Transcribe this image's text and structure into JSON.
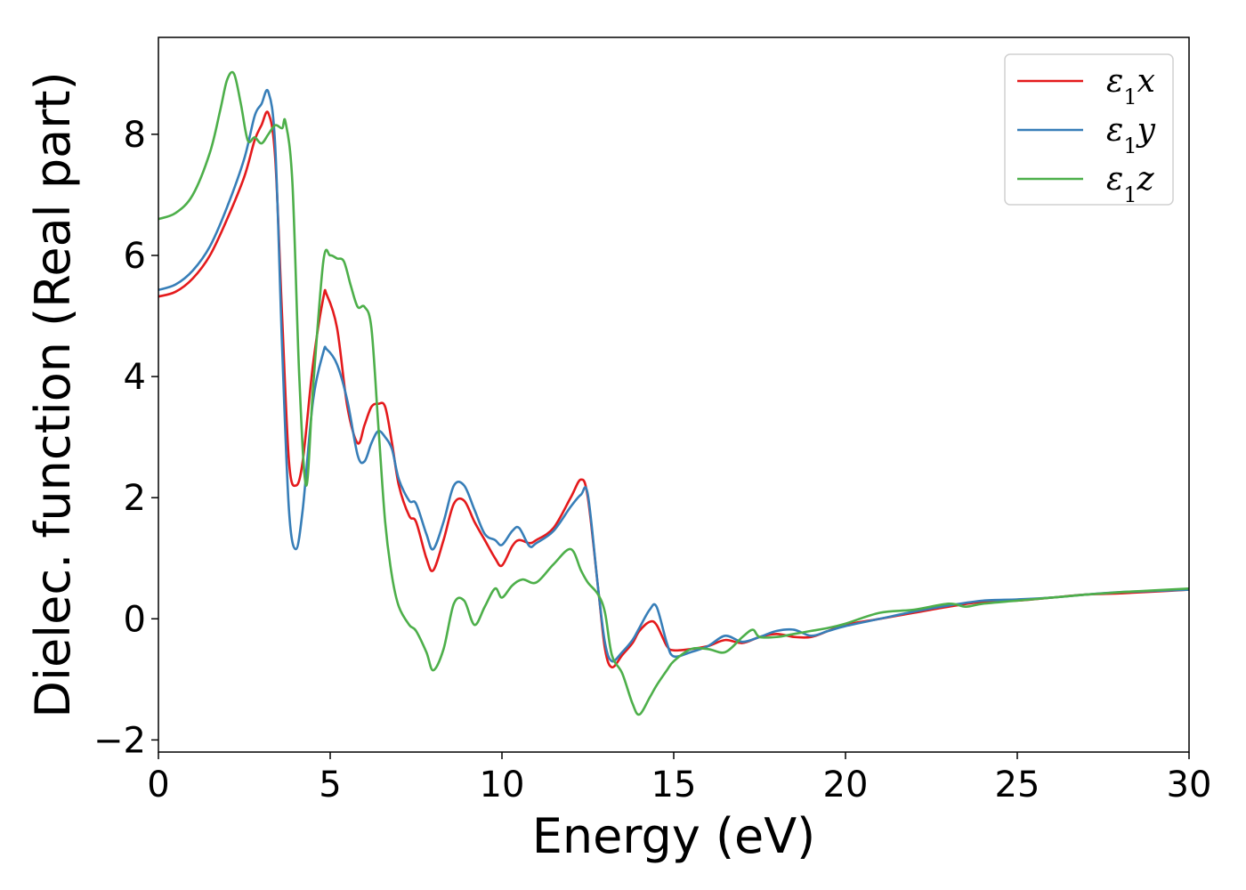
{
  "chart_data": {
    "type": "line",
    "title": "",
    "xlabel": "Energy (eV)",
    "ylabel": "Dielec. function (Real part)",
    "xlim": [
      0,
      30
    ],
    "ylim": [
      -2.2,
      9.6
    ],
    "xticks": [
      0,
      5,
      10,
      15,
      20,
      25,
      30
    ],
    "xtick_labels": [
      "0",
      "5",
      "10",
      "15",
      "20",
      "25",
      "30"
    ],
    "yticks": [
      -2,
      0,
      2,
      4,
      6,
      8
    ],
    "ytick_labels": [
      "−2",
      "0",
      "2",
      "4",
      "6",
      "8"
    ],
    "grid": false,
    "legend_position": "top-right",
    "series": [
      {
        "name": "ε1x",
        "legend": {
          "base": "ε",
          "sub": "1",
          "var": "x"
        },
        "color": "#e41a1c",
        "x": [
          0,
          0.5,
          1.0,
          1.5,
          2.0,
          2.5,
          2.8,
          3.0,
          3.2,
          3.4,
          3.6,
          3.8,
          4.0,
          4.2,
          4.5,
          4.8,
          4.9,
          5.2,
          5.5,
          5.8,
          6.0,
          6.2,
          6.4,
          6.6,
          6.8,
          7.0,
          7.3,
          7.5,
          7.8,
          8.0,
          8.3,
          8.6,
          8.9,
          9.2,
          9.5,
          9.8,
          10.0,
          10.3,
          10.5,
          10.8,
          11.0,
          11.5,
          12.0,
          12.3,
          12.5,
          12.8,
          13.0,
          13.2,
          13.5,
          13.8,
          14.0,
          14.3,
          14.5,
          14.8,
          15.0,
          15.5,
          16.0,
          16.5,
          17.0,
          17.5,
          18.0,
          18.5,
          19.0,
          19.5,
          20.0,
          21.0,
          22.0,
          23.0,
          24.0,
          25.0,
          26.0,
          27.0,
          28.0,
          29.0,
          30.0
        ],
        "y": [
          5.32,
          5.4,
          5.62,
          6.0,
          6.6,
          7.3,
          7.9,
          8.15,
          8.35,
          7.6,
          5.0,
          2.6,
          2.2,
          2.6,
          4.2,
          5.3,
          5.35,
          4.8,
          3.5,
          2.9,
          3.2,
          3.5,
          3.55,
          3.5,
          2.9,
          2.2,
          1.7,
          1.6,
          1.0,
          0.8,
          1.3,
          1.9,
          1.95,
          1.6,
          1.3,
          1.0,
          0.88,
          1.2,
          1.3,
          1.25,
          1.3,
          1.5,
          2.0,
          2.3,
          2.0,
          0.5,
          -0.5,
          -0.8,
          -0.6,
          -0.4,
          -0.2,
          -0.05,
          -0.1,
          -0.45,
          -0.52,
          -0.5,
          -0.45,
          -0.35,
          -0.4,
          -0.3,
          -0.25,
          -0.3,
          -0.3,
          -0.2,
          -0.1,
          0.0,
          0.1,
          0.2,
          0.28,
          0.3,
          0.35,
          0.4,
          0.42,
          0.45,
          0.48
        ]
      },
      {
        "name": "ε1y",
        "legend": {
          "base": "ε",
          "sub": "1",
          "var": "y"
        },
        "color": "#377eb8",
        "x": [
          0,
          0.5,
          1.0,
          1.5,
          2.0,
          2.5,
          2.8,
          3.0,
          3.2,
          3.4,
          3.6,
          3.8,
          4.0,
          4.2,
          4.5,
          4.8,
          4.9,
          5.2,
          5.5,
          5.8,
          6.0,
          6.2,
          6.4,
          6.6,
          6.8,
          7.0,
          7.3,
          7.5,
          7.8,
          8.0,
          8.3,
          8.6,
          8.9,
          9.2,
          9.5,
          9.8,
          10.0,
          10.3,
          10.5,
          10.8,
          11.0,
          11.5,
          12.0,
          12.3,
          12.5,
          12.8,
          13.0,
          13.2,
          13.5,
          13.8,
          14.0,
          14.3,
          14.5,
          14.8,
          15.0,
          15.5,
          16.0,
          16.5,
          17.0,
          17.5,
          18.0,
          18.5,
          19.0,
          19.5,
          20.0,
          21.0,
          22.0,
          23.0,
          24.0,
          25.0,
          26.0,
          27.0,
          28.0,
          29.0,
          30.0
        ],
        "y": [
          5.43,
          5.52,
          5.75,
          6.15,
          6.8,
          7.6,
          8.3,
          8.5,
          8.7,
          7.8,
          4.5,
          1.8,
          1.15,
          1.8,
          3.6,
          4.4,
          4.45,
          4.2,
          3.6,
          2.7,
          2.6,
          2.9,
          3.1,
          3.0,
          2.8,
          2.3,
          1.95,
          1.9,
          1.4,
          1.15,
          1.6,
          2.2,
          2.2,
          1.8,
          1.4,
          1.3,
          1.22,
          1.45,
          1.5,
          1.2,
          1.25,
          1.45,
          1.85,
          2.05,
          2.05,
          0.5,
          -0.4,
          -0.7,
          -0.55,
          -0.35,
          -0.15,
          0.15,
          0.2,
          -0.4,
          -0.62,
          -0.55,
          -0.45,
          -0.28,
          -0.38,
          -0.3,
          -0.2,
          -0.18,
          -0.28,
          -0.2,
          -0.12,
          0.0,
          0.12,
          0.22,
          0.3,
          0.32,
          0.35,
          0.4,
          0.44,
          0.46,
          0.48
        ]
      },
      {
        "name": "ε1z",
        "legend": {
          "base": "ε",
          "sub": "1",
          "var": "z"
        },
        "color": "#4daf4a",
        "x": [
          0,
          0.5,
          1.0,
          1.5,
          1.8,
          2.0,
          2.2,
          2.4,
          2.6,
          2.8,
          3.0,
          3.2,
          3.4,
          3.6,
          3.7,
          3.9,
          4.1,
          4.3,
          4.5,
          4.8,
          5.0,
          5.2,
          5.4,
          5.6,
          5.8,
          6.0,
          6.2,
          6.4,
          6.6,
          6.8,
          7.0,
          7.3,
          7.5,
          7.8,
          8.0,
          8.3,
          8.6,
          8.9,
          9.2,
          9.5,
          9.8,
          10.0,
          10.3,
          10.6,
          11.0,
          11.5,
          12.0,
          12.3,
          12.5,
          12.8,
          13.0,
          13.2,
          13.5,
          13.8,
          14.0,
          14.3,
          14.5,
          14.8,
          15.0,
          15.5,
          16.0,
          16.5,
          17.0,
          17.3,
          17.5,
          18.0,
          18.5,
          19.0,
          19.5,
          20.0,
          21.0,
          22.0,
          23.0,
          23.5,
          24.0,
          25.0,
          26.0,
          27.0,
          28.0,
          29.0,
          30.0
        ],
        "y": [
          6.6,
          6.7,
          7.0,
          7.7,
          8.4,
          8.9,
          9.0,
          8.5,
          7.9,
          7.95,
          7.85,
          8.0,
          8.15,
          8.1,
          8.2,
          7.2,
          4.0,
          2.2,
          3.8,
          5.9,
          6.0,
          5.95,
          5.9,
          5.5,
          5.15,
          5.15,
          4.8,
          3.2,
          1.6,
          0.7,
          0.2,
          -0.1,
          -0.2,
          -0.55,
          -0.85,
          -0.5,
          0.25,
          0.3,
          -0.1,
          0.2,
          0.5,
          0.35,
          0.55,
          0.65,
          0.6,
          0.9,
          1.15,
          0.8,
          0.6,
          0.4,
          0.1,
          -0.6,
          -0.9,
          -1.4,
          -1.58,
          -1.3,
          -1.1,
          -0.85,
          -0.7,
          -0.5,
          -0.5,
          -0.55,
          -0.3,
          -0.18,
          -0.3,
          -0.3,
          -0.25,
          -0.2,
          -0.15,
          -0.08,
          0.1,
          0.15,
          0.25,
          0.2,
          0.25,
          0.3,
          0.35,
          0.4,
          0.44,
          0.47,
          0.5
        ]
      }
    ]
  }
}
